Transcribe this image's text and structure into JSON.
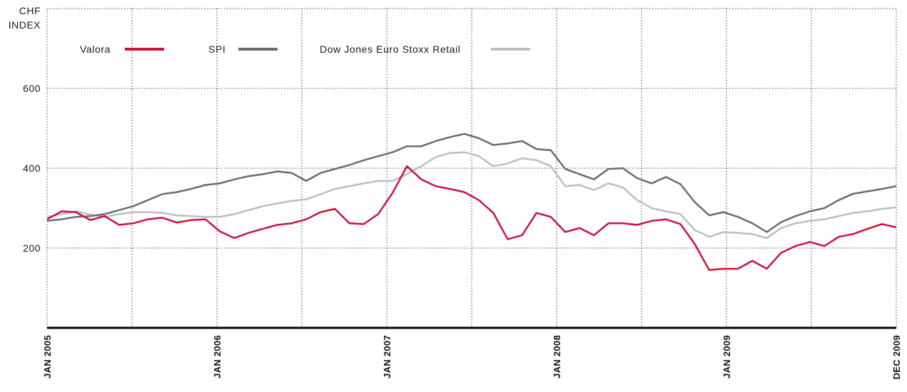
{
  "chart_data": {
    "type": "line",
    "ylabel_line1": "CHF",
    "ylabel_line2": "INDEX",
    "ylim": [
      0,
      600
    ],
    "y_ticks": [
      "200",
      "400",
      "600"
    ],
    "x_tick_labels": [
      "JAN 2005",
      "JAN 2006",
      "JAN 2007",
      "JAN 2008",
      "JAN 2009",
      "DEC 2009"
    ],
    "grid": "dotted",
    "legend_position": "top-left",
    "series": [
      {
        "name": "Valora",
        "color": "#d0103a",
        "points": [
          [
            "2005-01",
            272
          ],
          [
            "2005-02",
            292
          ],
          [
            "2005-03",
            290
          ],
          [
            "2005-04",
            270
          ],
          [
            "2005-05",
            280
          ],
          [
            "2005-06",
            258
          ],
          [
            "2005-07",
            262
          ],
          [
            "2005-08",
            272
          ],
          [
            "2005-09",
            276
          ],
          [
            "2005-10",
            264
          ],
          [
            "2005-11",
            270
          ],
          [
            "2005-12",
            272
          ],
          [
            "2006-01",
            242
          ],
          [
            "2006-02",
            225
          ],
          [
            "2006-03",
            238
          ],
          [
            "2006-04",
            248
          ],
          [
            "2006-05",
            258
          ],
          [
            "2006-06",
            262
          ],
          [
            "2006-07",
            272
          ],
          [
            "2006-08",
            290
          ],
          [
            "2006-09",
            298
          ],
          [
            "2006-10",
            262
          ],
          [
            "2006-11",
            260
          ],
          [
            "2006-12",
            285
          ],
          [
            "2007-01",
            338
          ],
          [
            "2007-02",
            405
          ],
          [
            "2007-03",
            372
          ],
          [
            "2007-04",
            355
          ],
          [
            "2007-05",
            348
          ],
          [
            "2007-06",
            340
          ],
          [
            "2007-07",
            320
          ],
          [
            "2007-08",
            288
          ],
          [
            "2007-09",
            222
          ],
          [
            "2007-10",
            232
          ],
          [
            "2007-11",
            288
          ],
          [
            "2007-12",
            278
          ],
          [
            "2008-01",
            240
          ],
          [
            "2008-02",
            250
          ],
          [
            "2008-03",
            232
          ],
          [
            "2008-04",
            262
          ],
          [
            "2008-05",
            262
          ],
          [
            "2008-06",
            258
          ],
          [
            "2008-07",
            268
          ],
          [
            "2008-08",
            272
          ],
          [
            "2008-09",
            260
          ],
          [
            "2008-10",
            210
          ],
          [
            "2008-11",
            145
          ],
          [
            "2008-12",
            148
          ],
          [
            "2009-01",
            148
          ],
          [
            "2009-02",
            168
          ],
          [
            "2009-03",
            148
          ],
          [
            "2009-04",
            188
          ],
          [
            "2009-05",
            205
          ],
          [
            "2009-06",
            215
          ],
          [
            "2009-07",
            205
          ],
          [
            "2009-08",
            228
          ],
          [
            "2009-09",
            235
          ],
          [
            "2009-10",
            248
          ],
          [
            "2009-11",
            260
          ],
          [
            "2009-12",
            252
          ]
        ]
      },
      {
        "name": "SPI",
        "color": "#6b6b6b",
        "points": [
          [
            "2005-01",
            268
          ],
          [
            "2005-02",
            272
          ],
          [
            "2005-03",
            278
          ],
          [
            "2005-04",
            280
          ],
          [
            "2005-05",
            285
          ],
          [
            "2005-06",
            295
          ],
          [
            "2005-07",
            305
          ],
          [
            "2005-08",
            320
          ],
          [
            "2005-09",
            335
          ],
          [
            "2005-10",
            340
          ],
          [
            "2005-11",
            348
          ],
          [
            "2005-12",
            358
          ],
          [
            "2006-01",
            362
          ],
          [
            "2006-02",
            372
          ],
          [
            "2006-03",
            380
          ],
          [
            "2006-04",
            385
          ],
          [
            "2006-05",
            392
          ],
          [
            "2006-06",
            388
          ],
          [
            "2006-07",
            368
          ],
          [
            "2006-08",
            388
          ],
          [
            "2006-09",
            398
          ],
          [
            "2006-10",
            408
          ],
          [
            "2006-11",
            420
          ],
          [
            "2006-12",
            430
          ],
          [
            "2007-01",
            440
          ],
          [
            "2007-02",
            455
          ],
          [
            "2007-03",
            455
          ],
          [
            "2007-04",
            468
          ],
          [
            "2007-05",
            478
          ],
          [
            "2007-06",
            486
          ],
          [
            "2007-07",
            475
          ],
          [
            "2007-08",
            458
          ],
          [
            "2007-09",
            462
          ],
          [
            "2007-10",
            468
          ],
          [
            "2007-11",
            448
          ],
          [
            "2007-12",
            445
          ],
          [
            "2008-01",
            398
          ],
          [
            "2008-02",
            385
          ],
          [
            "2008-03",
            372
          ],
          [
            "2008-04",
            398
          ],
          [
            "2008-05",
            400
          ],
          [
            "2008-06",
            375
          ],
          [
            "2008-07",
            362
          ],
          [
            "2008-08",
            378
          ],
          [
            "2008-09",
            360
          ],
          [
            "2008-10",
            315
          ],
          [
            "2008-11",
            282
          ],
          [
            "2008-12",
            290
          ],
          [
            "2009-01",
            278
          ],
          [
            "2009-02",
            262
          ],
          [
            "2009-03",
            240
          ],
          [
            "2009-04",
            265
          ],
          [
            "2009-05",
            280
          ],
          [
            "2009-06",
            292
          ],
          [
            "2009-07",
            300
          ],
          [
            "2009-08",
            320
          ],
          [
            "2009-09",
            336
          ],
          [
            "2009-10",
            342
          ],
          [
            "2009-11",
            348
          ],
          [
            "2009-12",
            355
          ]
        ]
      },
      {
        "name": "Dow Jones Euro Stoxx Retail",
        "color": "#bdbdbd",
        "points": [
          [
            "2005-01",
            278
          ],
          [
            "2005-02",
            285
          ],
          [
            "2005-03",
            292
          ],
          [
            "2005-04",
            284
          ],
          [
            "2005-05",
            278
          ],
          [
            "2005-06",
            285
          ],
          [
            "2005-07",
            290
          ],
          [
            "2005-08",
            290
          ],
          [
            "2005-09",
            288
          ],
          [
            "2005-10",
            282
          ],
          [
            "2005-11",
            280
          ],
          [
            "2005-12",
            278
          ],
          [
            "2006-01",
            278
          ],
          [
            "2006-02",
            285
          ],
          [
            "2006-03",
            295
          ],
          [
            "2006-04",
            305
          ],
          [
            "2006-05",
            312
          ],
          [
            "2006-06",
            318
          ],
          [
            "2006-07",
            322
          ],
          [
            "2006-08",
            335
          ],
          [
            "2006-09",
            348
          ],
          [
            "2006-10",
            355
          ],
          [
            "2006-11",
            362
          ],
          [
            "2006-12",
            368
          ],
          [
            "2007-01",
            368
          ],
          [
            "2007-02",
            385
          ],
          [
            "2007-03",
            405
          ],
          [
            "2007-04",
            428
          ],
          [
            "2007-05",
            438
          ],
          [
            "2007-06",
            440
          ],
          [
            "2007-07",
            430
          ],
          [
            "2007-08",
            405
          ],
          [
            "2007-09",
            412
          ],
          [
            "2007-10",
            425
          ],
          [
            "2007-11",
            420
          ],
          [
            "2007-12",
            405
          ],
          [
            "2008-01",
            355
          ],
          [
            "2008-02",
            358
          ],
          [
            "2008-03",
            345
          ],
          [
            "2008-04",
            362
          ],
          [
            "2008-05",
            352
          ],
          [
            "2008-06",
            320
          ],
          [
            "2008-07",
            300
          ],
          [
            "2008-08",
            292
          ],
          [
            "2008-09",
            285
          ],
          [
            "2008-10",
            245
          ],
          [
            "2008-11",
            228
          ],
          [
            "2008-12",
            240
          ],
          [
            "2009-01",
            238
          ],
          [
            "2009-02",
            235
          ],
          [
            "2009-03",
            225
          ],
          [
            "2009-04",
            250
          ],
          [
            "2009-05",
            262
          ],
          [
            "2009-06",
            268
          ],
          [
            "2009-07",
            272
          ],
          [
            "2009-08",
            280
          ],
          [
            "2009-09",
            288
          ],
          [
            "2009-10",
            292
          ],
          [
            "2009-11",
            298
          ],
          [
            "2009-12",
            302
          ]
        ]
      }
    ]
  }
}
